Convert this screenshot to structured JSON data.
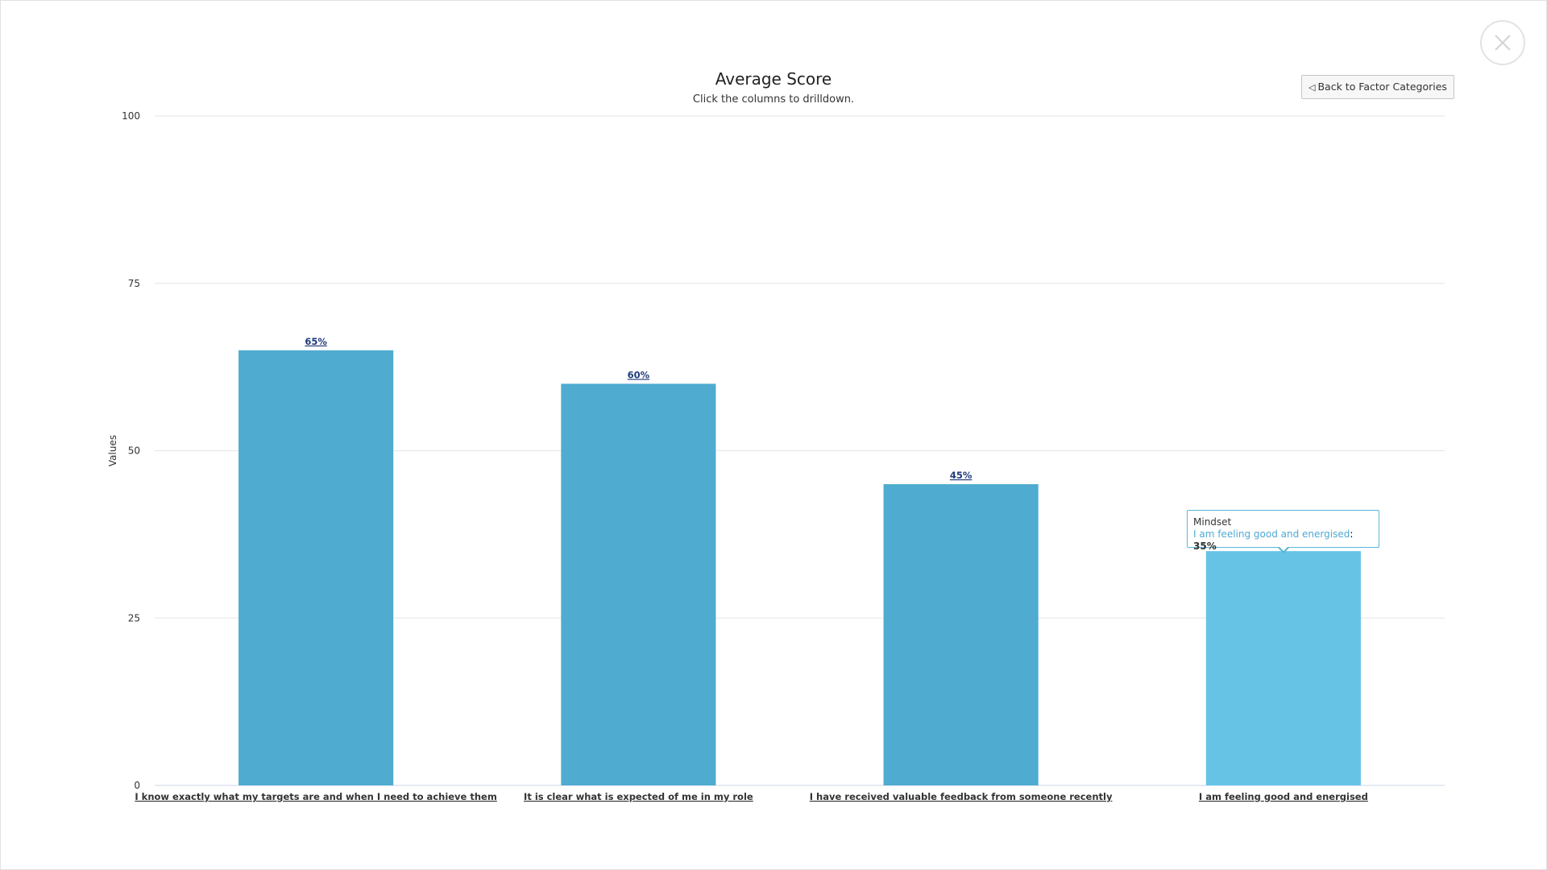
{
  "header": {
    "close_icon": "close-icon",
    "back_button_label": "Back to Factor Categories",
    "back_button_icon": "triangle-left-icon"
  },
  "tooltip": {
    "series": "Mindset",
    "point_name": "I am feeling good and energised",
    "point_value": "35%"
  },
  "chart_data": {
    "type": "bar",
    "title": "Average Score",
    "subtitle": "Click the columns to drilldown.",
    "xlabel": "",
    "ylabel": "Values",
    "ylim": [
      0,
      100
    ],
    "yticks": [
      0,
      25,
      50,
      75,
      100
    ],
    "grid": true,
    "categories": [
      "I know exactly what my targets are and when I need to achieve them",
      "It is clear what is expected of me in my role",
      "I have received valuable feedback from someone recently",
      "I am feeling good and energised"
    ],
    "values": [
      65,
      60,
      45,
      35
    ],
    "data_labels": [
      "65%",
      "60%",
      "45%",
      ""
    ],
    "colors": {
      "bar": "#4fabd0",
      "bar_hover": "#66c3e6",
      "grid": "#e6e6e6",
      "data_label": "#1f3a7a"
    },
    "hovered_index": 3
  }
}
